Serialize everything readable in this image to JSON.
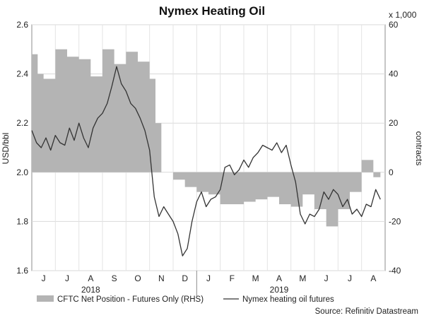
{
  "chart_data": {
    "type": "line",
    "title": "Nymex Heating Oil",
    "ylabel_left": "USD/bbl",
    "ylabel_right": "contracts",
    "right_axis_unit": "x 1,000",
    "source": "Source: Refinitiv Datastream",
    "ylim_left": [
      1.6,
      2.6
    ],
    "ylim_right": [
      -40,
      60
    ],
    "yticks_left": [
      "1.6",
      "1.8",
      "2.0",
      "2.2",
      "2.4",
      "2.6"
    ],
    "yticks_right": [
      "-40",
      "-20",
      "0",
      "20",
      "40",
      "60"
    ],
    "month_labels": [
      "J",
      "J",
      "A",
      "S",
      "O",
      "N",
      "D",
      "J",
      "F",
      "M",
      "A",
      "M",
      "J",
      "J",
      "A"
    ],
    "year_labels": [
      "2018",
      "2019"
    ],
    "grid": true,
    "legend_placement": "bottom",
    "series": [
      {
        "name": "CFTC Net Position - Futures Only (RHS)",
        "kind": "area",
        "axis": "right",
        "color": "#b4b4b4",
        "x": [
          0,
          0.25,
          0.5,
          1,
          1.5,
          2,
          2.5,
          3,
          3.5,
          4,
          4.5,
          5,
          5.25,
          5.5,
          6,
          6.5,
          7,
          7.5,
          8,
          8.5,
          9,
          9.5,
          10,
          10.5,
          11,
          11.5,
          12,
          12.5,
          13,
          13.5,
          14,
          14.5,
          14.8
        ],
        "values": [
          48,
          40,
          38,
          50,
          47,
          46,
          39,
          50,
          44,
          49,
          45,
          38,
          20,
          0,
          -3,
          -6,
          -8,
          -9,
          -13,
          -13,
          -12,
          -11,
          -10,
          -13,
          -14,
          -9,
          -15,
          -22,
          -15,
          -8,
          5,
          -2,
          -7
        ]
      },
      {
        "name": "Nymex heating oil futures",
        "kind": "line",
        "axis": "left",
        "color": "#333333",
        "x": [
          0,
          0.2,
          0.4,
          0.6,
          0.8,
          1.0,
          1.2,
          1.4,
          1.6,
          1.8,
          2.0,
          2.2,
          2.4,
          2.6,
          2.8,
          3.0,
          3.2,
          3.4,
          3.6,
          3.8,
          4.0,
          4.2,
          4.4,
          4.6,
          4.8,
          5.0,
          5.2,
          5.4,
          5.6,
          5.8,
          6.0,
          6.2,
          6.4,
          6.6,
          6.8,
          7.0,
          7.2,
          7.4,
          7.6,
          7.8,
          8.0,
          8.2,
          8.4,
          8.6,
          8.8,
          9.0,
          9.2,
          9.4,
          9.6,
          9.8,
          10.0,
          10.2,
          10.4,
          10.6,
          10.8,
          11.0,
          11.2,
          11.4,
          11.6,
          11.8,
          12.0,
          12.2,
          12.4,
          12.6,
          12.8,
          13.0,
          13.2,
          13.4,
          13.6,
          13.8,
          14.0,
          14.2,
          14.4,
          14.6,
          14.8
        ],
        "values": [
          2.17,
          2.12,
          2.1,
          2.14,
          2.09,
          2.15,
          2.12,
          2.11,
          2.18,
          2.13,
          2.2,
          2.14,
          2.1,
          2.18,
          2.22,
          2.24,
          2.28,
          2.35,
          2.43,
          2.36,
          2.33,
          2.28,
          2.26,
          2.22,
          2.17,
          2.09,
          1.9,
          1.82,
          1.86,
          1.83,
          1.8,
          1.75,
          1.66,
          1.69,
          1.8,
          1.88,
          1.92,
          1.86,
          1.89,
          1.9,
          1.93,
          2.02,
          2.03,
          1.99,
          2.01,
          2.05,
          2.02,
          2.06,
          2.08,
          2.11,
          2.1,
          2.09,
          2.12,
          2.08,
          2.11,
          2.03,
          1.96,
          1.83,
          1.79,
          1.83,
          1.82,
          1.85,
          1.92,
          1.89,
          1.93,
          1.91,
          1.86,
          1.89,
          1.83,
          1.85,
          1.82,
          1.87,
          1.86,
          1.93,
          1.89
        ]
      }
    ]
  }
}
